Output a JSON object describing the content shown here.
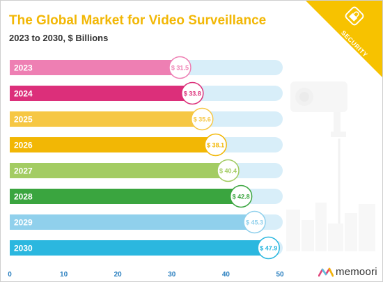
{
  "title": "The Global Market for Video Surveillance",
  "subtitle": "2023 to 2030, $ Billions",
  "badge": {
    "text": "SECURITY",
    "color": "#f7c200",
    "icon": "lock-icon"
  },
  "brand": {
    "name": "memoori",
    "icon": "memoori-logo-icon"
  },
  "colors": {
    "track": "#d8eef9",
    "title": "#f2b705"
  },
  "chart_data": {
    "type": "bar",
    "orientation": "horizontal",
    "categories": [
      "2023",
      "2024",
      "2025",
      "2026",
      "2027",
      "2028",
      "2029",
      "2030"
    ],
    "values": [
      31.5,
      33.8,
      35.6,
      38.1,
      40.4,
      42.8,
      45.3,
      47.9
    ],
    "labels": [
      "$ 31.5",
      "$ 33.8",
      "$ 35.6",
      "$ 38.1",
      "$ 40.4",
      "$ 42.8",
      "$ 45.3",
      "$ 47.9"
    ],
    "colors": [
      "#ee7fb3",
      "#dc2f7a",
      "#f6c744",
      "#f2b705",
      "#a3cc63",
      "#3aa53f",
      "#90d0ec",
      "#2bb7df"
    ],
    "xticks": [
      0,
      10,
      20,
      30,
      40,
      50
    ],
    "xlim": [
      0,
      50
    ],
    "xlabel": "",
    "ylabel": "",
    "grid": false,
    "legend": "none"
  }
}
